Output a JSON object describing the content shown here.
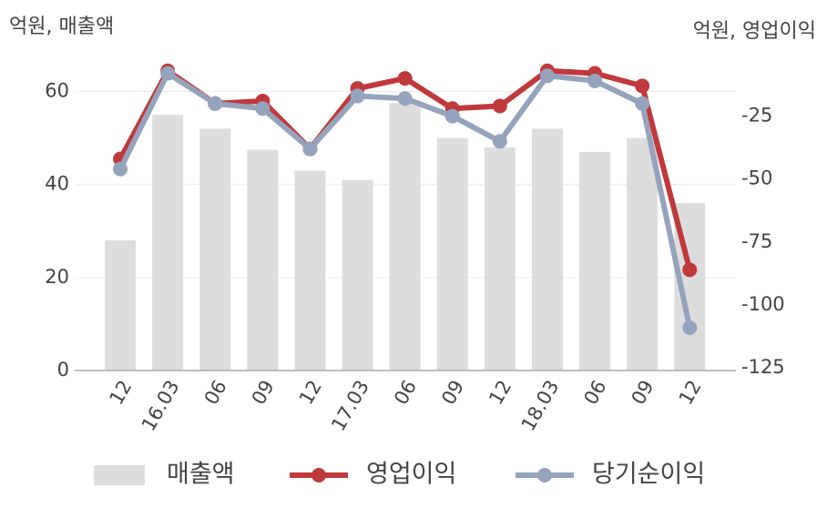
{
  "chart_data": {
    "type": "combo",
    "y_label": "억원, 매출액",
    "y2_label": "억원, 영업이익",
    "categories": [
      "12",
      "16.03",
      "06",
      "09",
      "12",
      "17.03",
      "06",
      "09",
      "12",
      "18.03",
      "06",
      "09",
      "12"
    ],
    "ylim": [
      0,
      65
    ],
    "yticks": [
      0,
      20,
      40,
      60
    ],
    "y2lim": [
      -126,
      -6
    ],
    "y2ticks": [
      -25,
      -50,
      -75,
      -100,
      -125
    ],
    "grid": true,
    "legend": "bottom",
    "series": [
      {
        "name": "매출액",
        "type": "bar",
        "color": "#dddddd",
        "values": [
          28,
          55,
          52,
          47.5,
          43,
          41,
          57.5,
          50,
          48,
          52,
          47,
          50,
          36
        ]
      },
      {
        "name": "영업이익",
        "type": "line",
        "axis": "y2",
        "color": "#c0393b",
        "values": [
          -42,
          -7,
          -20,
          -19,
          -38,
          -14,
          -10,
          -22,
          -21,
          -7,
          -8,
          -13,
          -86
        ]
      },
      {
        "name": "당기순이익",
        "type": "line",
        "axis": "y2",
        "color": "#95a3bd",
        "values": [
          -46,
          -8,
          -20,
          -22,
          -38,
          -17,
          -18,
          -25,
          -35,
          -9,
          -11,
          -20,
          -109
        ]
      }
    ]
  }
}
